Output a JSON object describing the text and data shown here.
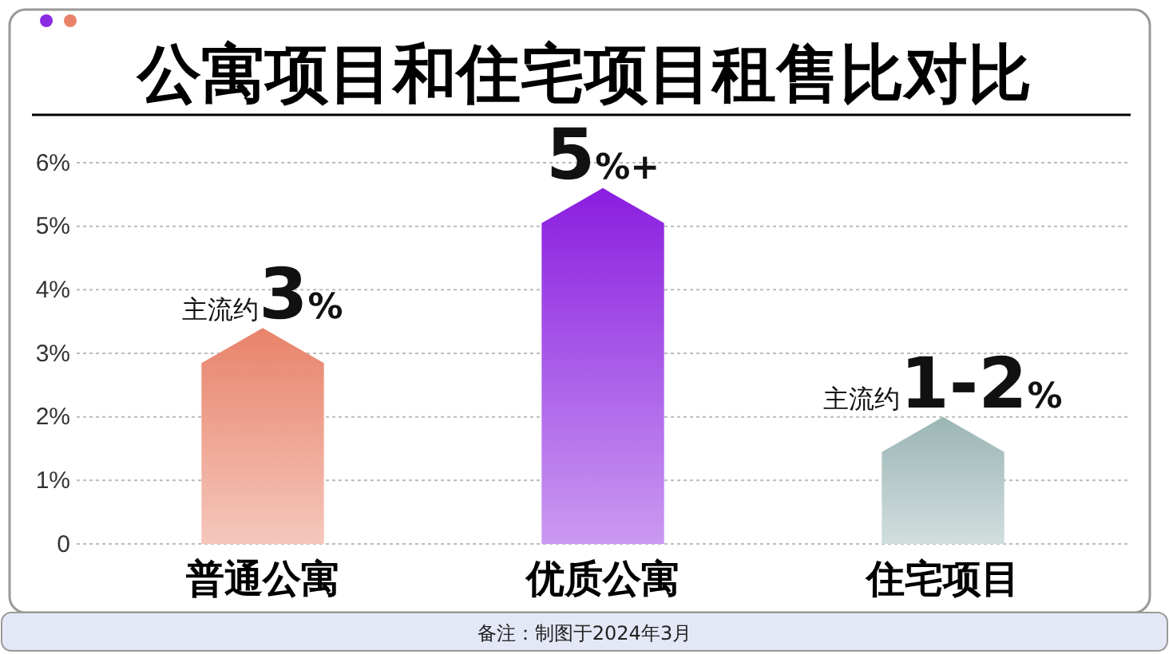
{
  "chart_data": {
    "type": "bar",
    "title": "公寓项目和住宅项目租售比对比",
    "categories": [
      "普通公寓",
      "优质公寓",
      "住宅项目"
    ],
    "values": [
      3.4,
      5.6,
      2.0
    ],
    "colors": [
      "#e8836a",
      "#8a1ee0",
      "#9bb5b5"
    ],
    "ylim": [
      0,
      6
    ],
    "yticks": [
      0,
      {
        "value": 1,
        "label": "1%"
      },
      {
        "value": 2,
        "label": "2%"
      },
      {
        "value": 3,
        "label": "3%"
      },
      {
        "value": 4,
        "label": "4%"
      },
      {
        "value": 5,
        "label": "5%"
      },
      {
        "value": 6,
        "label": "6%"
      }
    ],
    "grid": "y",
    "annotations": [
      {
        "text": "主流约3%",
        "x": "普通公寓",
        "y": 3.4
      },
      {
        "text": "5%+",
        "x": "优质公寓",
        "y": 5.6
      },
      {
        "text": "主流约1-2%",
        "x": "住宅项目",
        "y": 2.0
      },
      "备注：制图于2024年3月"
    ]
  }
}
